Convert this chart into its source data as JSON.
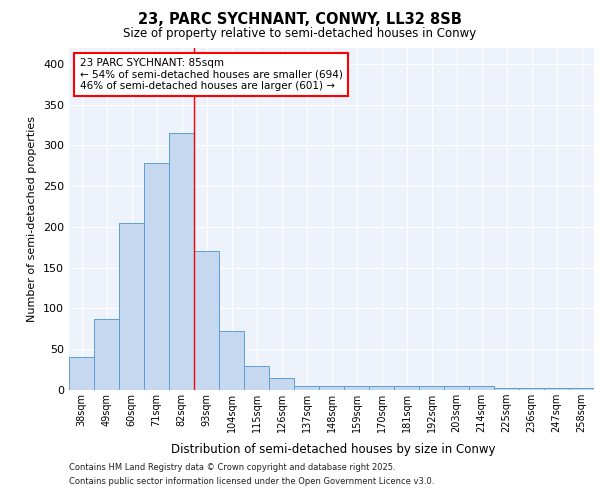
{
  "title1": "23, PARC SYCHNANT, CONWY, LL32 8SB",
  "title2": "Size of property relative to semi-detached houses in Conwy",
  "xlabel": "Distribution of semi-detached houses by size in Conwy",
  "ylabel": "Number of semi-detached properties",
  "categories": [
    "38sqm",
    "49sqm",
    "60sqm",
    "71sqm",
    "82sqm",
    "93sqm",
    "104sqm",
    "115sqm",
    "126sqm",
    "137sqm",
    "148sqm",
    "159sqm",
    "170sqm",
    "181sqm",
    "192sqm",
    "203sqm",
    "214sqm",
    "225sqm",
    "236sqm",
    "247sqm",
    "258sqm"
  ],
  "values": [
    40,
    87,
    205,
    278,
    315,
    170,
    72,
    30,
    15,
    5,
    5,
    5,
    5,
    5,
    5,
    5,
    5,
    2,
    2,
    2,
    2
  ],
  "bar_color": "#c5d8f0",
  "bar_edge_color": "#5a9fd4",
  "property_line_x": 4.5,
  "annotation_text": "23 PARC SYCHNANT: 85sqm\n← 54% of semi-detached houses are smaller (694)\n46% of semi-detached houses are larger (601) →",
  "footer1": "Contains HM Land Registry data © Crown copyright and database right 2025.",
  "footer2": "Contains public sector information licensed under the Open Government Licence v3.0.",
  "ylim": [
    0,
    420
  ],
  "yticks": [
    0,
    50,
    100,
    150,
    200,
    250,
    300,
    350,
    400
  ],
  "bg_color": "#eef2fb"
}
